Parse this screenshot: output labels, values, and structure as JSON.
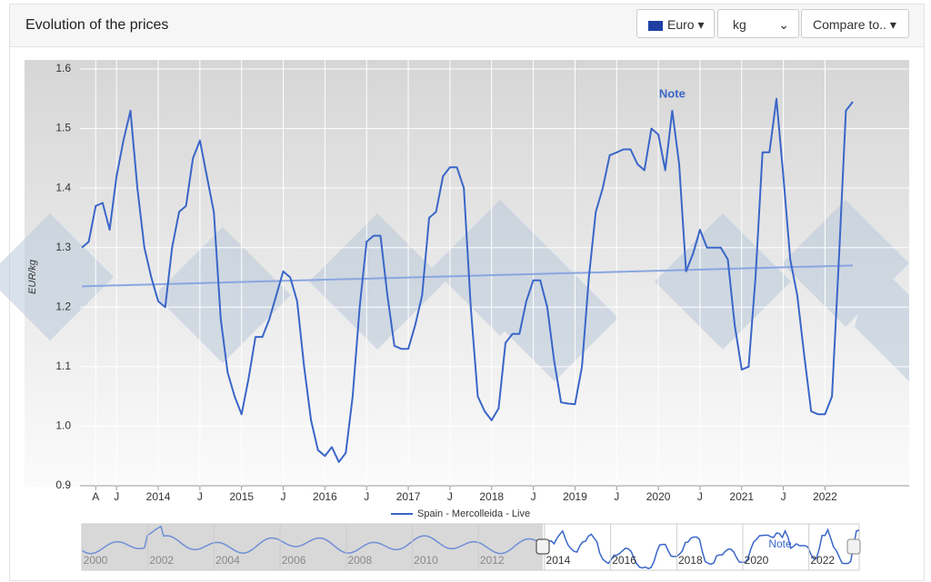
{
  "header": {
    "title": "Evolution of the prices"
  },
  "controls": {
    "currency": "Euro",
    "unit": "kg",
    "compare": "Compare to.."
  },
  "chart_data": {
    "type": "line",
    "ylabel": "EUR/kg",
    "categories": [
      null,
      null,
      "A",
      null,
      null,
      "J",
      null,
      null,
      null,
      null,
      null,
      "2014",
      null,
      null,
      null,
      null,
      null,
      "J",
      null,
      null,
      null,
      null,
      null,
      "2015",
      null,
      null,
      null,
      null,
      null,
      "J",
      null,
      null,
      null,
      null,
      null,
      "2016",
      null,
      null,
      null,
      null,
      null,
      "J",
      null,
      null,
      null,
      null,
      null,
      "2017",
      null,
      null,
      null,
      null,
      null,
      "J",
      null,
      null,
      null,
      null,
      null,
      "2018",
      null,
      null,
      null,
      null,
      null,
      "J",
      null,
      null,
      null,
      null,
      null,
      "2019",
      null,
      null,
      null,
      null,
      null,
      "J",
      null,
      null,
      null,
      null,
      null,
      "2020",
      null,
      null,
      null,
      null,
      null,
      "J",
      null,
      null,
      null,
      null,
      null,
      "2021",
      null,
      null,
      null,
      null,
      null,
      "J",
      null,
      null,
      null,
      null,
      null,
      "2022",
      null,
      null,
      null,
      null
    ],
    "series": [
      {
        "name": "Spain - Mercolleida - Live",
        "color": "#3a66c8",
        "values": [
          1.3,
          1.31,
          1.37,
          1.375,
          1.33,
          1.42,
          1.48,
          1.53,
          1.4,
          1.3,
          1.25,
          1.21,
          1.2,
          1.3,
          1.36,
          1.37,
          1.45,
          1.48,
          1.42,
          1.36,
          1.18,
          1.09,
          1.05,
          1.02,
          1.08,
          1.15,
          1.15,
          1.18,
          1.22,
          1.26,
          1.25,
          1.21,
          1.1,
          1.01,
          0.96,
          0.95,
          0.965,
          0.94,
          0.955,
          1.05,
          1.2,
          1.31,
          1.32,
          1.32,
          1.22,
          1.135,
          1.13,
          1.13,
          1.17,
          1.22,
          1.35,
          1.36,
          1.42,
          1.435,
          1.435,
          1.4,
          1.2,
          1.05,
          1.025,
          1.01,
          1.03,
          1.14,
          1.155,
          1.155,
          1.21,
          1.245,
          1.245,
          1.2,
          1.11,
          1.04,
          1.038,
          1.037,
          1.1,
          1.25,
          1.36,
          1.4,
          1.455,
          1.46,
          1.465,
          1.465,
          1.44,
          1.43,
          1.5,
          1.49,
          1.43,
          1.53,
          1.44,
          1.26,
          1.29,
          1.33,
          1.3,
          1.3,
          1.3,
          1.28,
          1.17,
          1.095,
          1.1,
          1.25,
          1.46,
          1.46,
          1.55,
          1.42,
          1.28,
          1.22,
          1.12,
          1.025,
          1.02,
          1.02,
          1.05,
          1.28,
          1.53,
          1.545
        ]
      }
    ],
    "trendline": {
      "values": [
        1.235,
        1.27
      ],
      "color": "#8aa6e0"
    },
    "annotation": "Note",
    "ylim": [
      0.9,
      1.6
    ],
    "yticks": [
      0.9,
      {
        "value": 1,
        "label": "1.0"
      },
      1.1,
      1.2,
      1.3,
      1.4,
      1.5,
      1.6
    ],
    "grid": true
  },
  "navigator": {
    "labels": [
      "2000",
      "2002",
      "2004",
      "2006",
      "2008",
      "2010",
      "2012",
      "2014",
      "2016",
      "2018",
      "2020",
      "2022"
    ],
    "annotation": "Note"
  }
}
